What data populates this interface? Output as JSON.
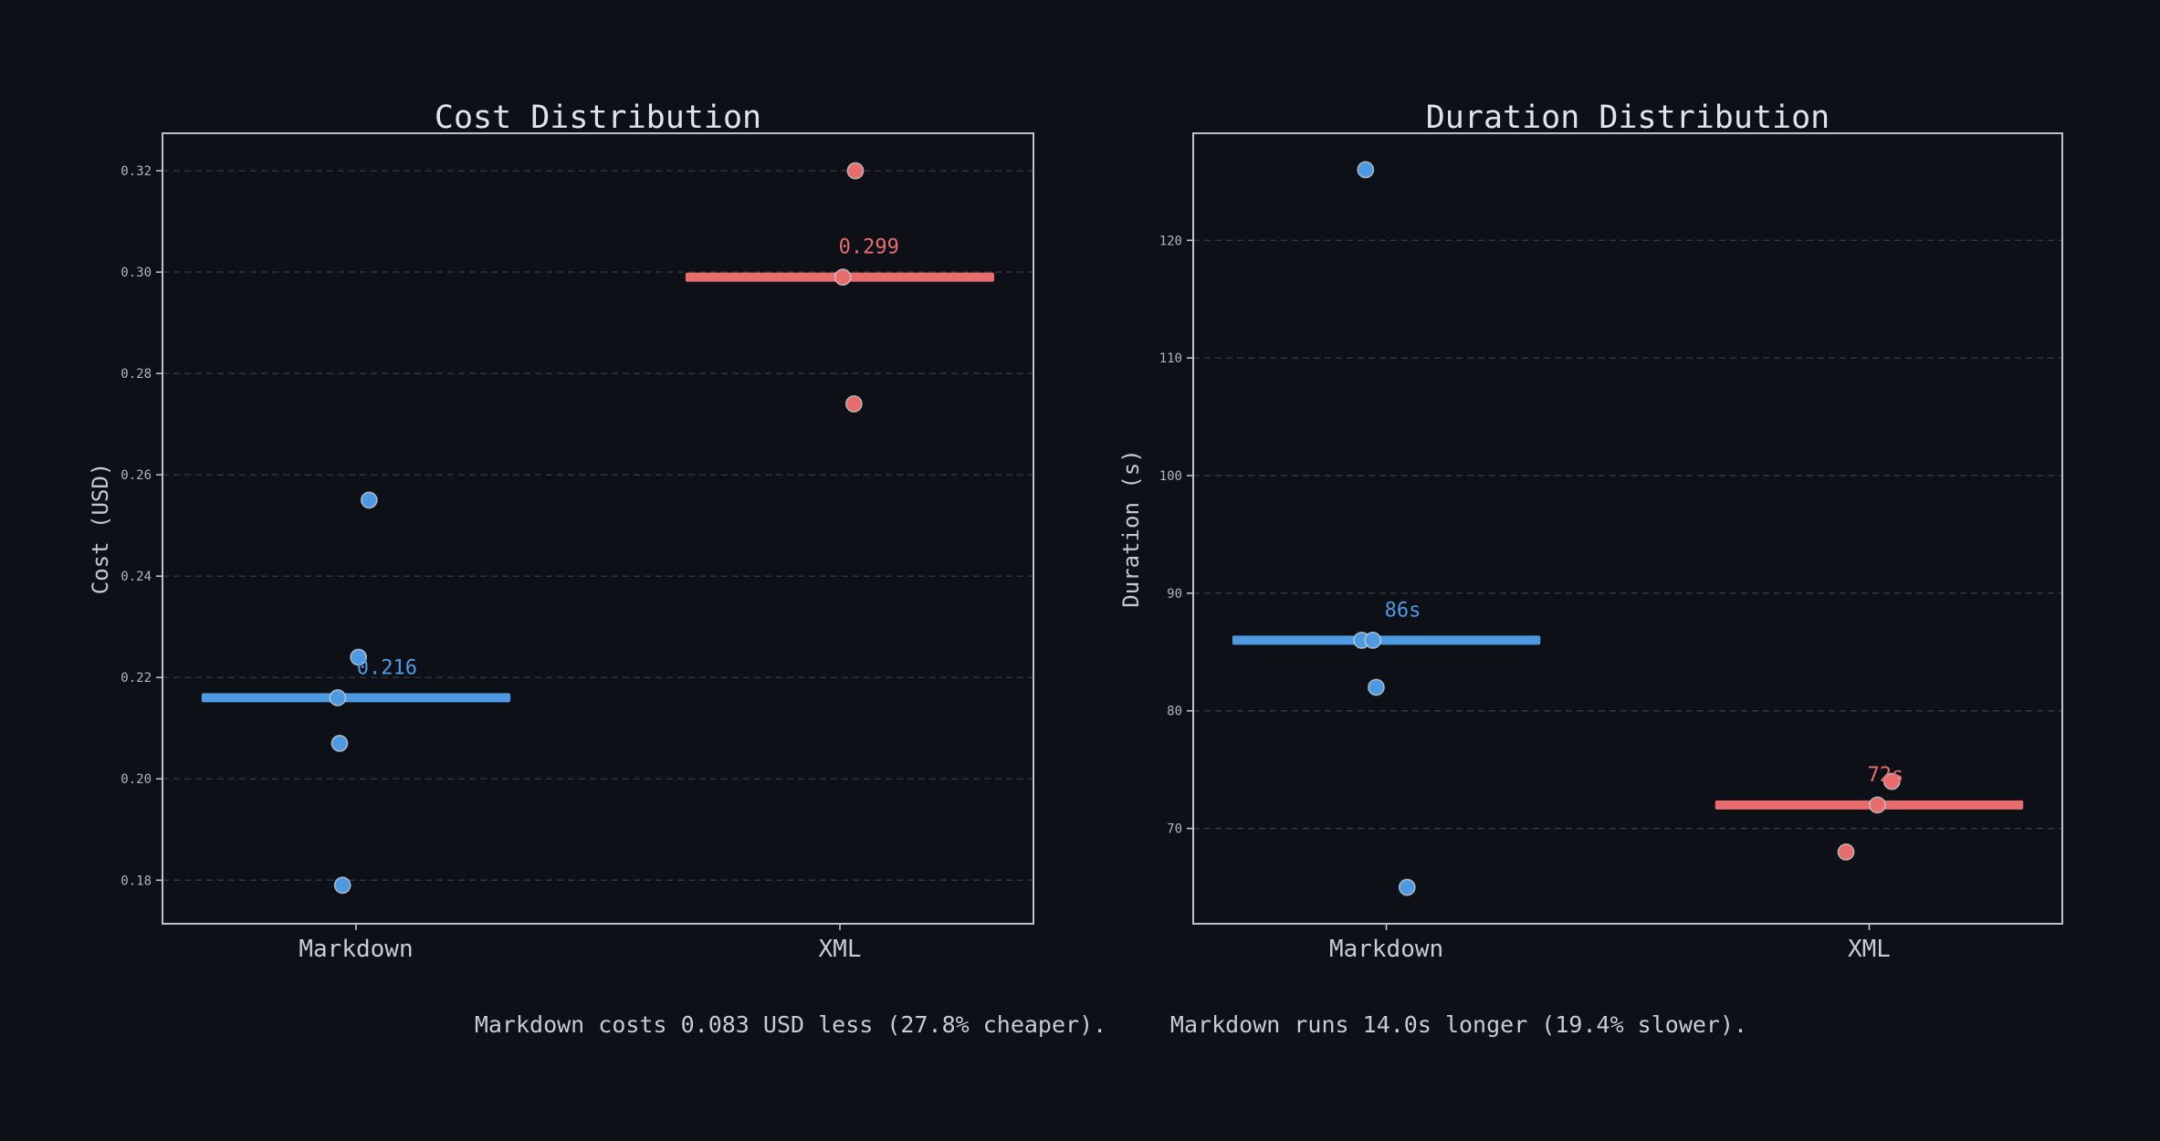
{
  "page": {
    "background": "#0d1117"
  },
  "colors": {
    "markdown_series": "#4d9ae2",
    "xml_series": "#e86c6c",
    "title_text": "#dfe4e8",
    "axis_label_text": "#c4cad0",
    "tick_label_text": "#aeb5bc",
    "category_label_text": "#c8cdd3",
    "footer_text": "#c6ccd2",
    "spine": "#bcc3c9",
    "grid": "#31373e"
  },
  "chart_data": [
    {
      "type": "scatter",
      "title": "Cost Distribution",
      "ylabel": "Cost (USD)",
      "xlabel": "",
      "ylim": [
        0.1714,
        0.3274
      ],
      "xlim": [
        -0.4,
        1.4
      ],
      "grid": "dashed-horizontal",
      "legend": "none",
      "yticks": {
        "values": [
          0.18,
          0.2,
          0.22,
          0.24,
          0.26,
          0.28,
          0.3,
          0.32
        ],
        "labels": [
          "0.18",
          "0.20",
          "0.22",
          "0.24",
          "0.26",
          "0.28",
          "0.30",
          "0.32"
        ]
      },
      "categories": [
        "Markdown",
        "XML"
      ],
      "series": [
        {
          "name": "Markdown",
          "color_key": "markdown_series",
          "median": 0.216,
          "median_label": "0.216",
          "label_dx": 0.064,
          "median_halfwidth": 0.319,
          "points": [
            {
              "y": 0.255,
              "dx": 0.027
            },
            {
              "y": 0.224,
              "dx": 0.005
            },
            {
              "y": 0.216,
              "dx": -0.038
            },
            {
              "y": 0.207,
              "dx": -0.034
            },
            {
              "y": 0.179,
              "dx": -0.028
            }
          ]
        },
        {
          "name": "XML",
          "color_key": "xml_series",
          "median": 0.299,
          "median_label": "0.299",
          "label_dx": 0.06,
          "median_halfwidth": 0.319,
          "points": [
            {
              "y": 0.32,
              "dx": 0.032
            },
            {
              "y": 0.299,
              "dx": 0.006
            },
            {
              "y": 0.274,
              "dx": 0.029
            }
          ]
        }
      ]
    },
    {
      "type": "scatter",
      "title": "Duration Distribution",
      "ylabel": "Duration (s)",
      "xlabel": "",
      "ylim": [
        61.9,
        129.1
      ],
      "xlim": [
        -0.4,
        1.4
      ],
      "grid": "dashed-horizontal",
      "legend": "none",
      "yticks": {
        "values": [
          70,
          80,
          90,
          100,
          110,
          120
        ],
        "labels": [
          "70",
          "80",
          "90",
          "100",
          "110",
          "120"
        ]
      },
      "categories": [
        "Markdown",
        "XML"
      ],
      "series": [
        {
          "name": "Markdown",
          "color_key": "markdown_series",
          "median": 86,
          "median_label": "86s",
          "label_dx": 0.034,
          "median_halfwidth": 0.319,
          "points": [
            {
              "y": 126,
              "dx": -0.043
            },
            {
              "y": 86,
              "dx": -0.051
            },
            {
              "y": 86,
              "dx": -0.028
            },
            {
              "y": 82,
              "dx": -0.021
            },
            {
              "y": 65,
              "dx": 0.043
            }
          ]
        },
        {
          "name": "XML",
          "color_key": "xml_series",
          "median": 72,
          "median_label": "72s",
          "label_dx": 0.034,
          "median_halfwidth": 0.319,
          "points": [
            {
              "y": 74,
              "dx": 0.047
            },
            {
              "y": 72,
              "dx": 0.017
            },
            {
              "y": 68,
              "dx": -0.048
            }
          ]
        }
      ]
    }
  ],
  "footer": {
    "cost_summary": "Markdown costs 0.083 USD less (27.8% cheaper).",
    "duration_summary": "Markdown runs 14.0s longer (19.4% slower)."
  }
}
